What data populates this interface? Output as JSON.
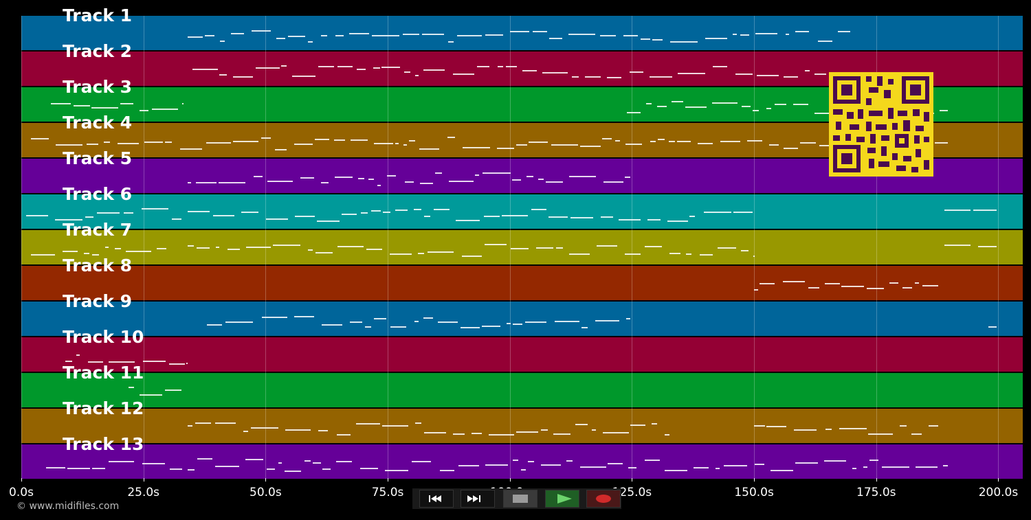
{
  "tracks": [
    {
      "label": "Track 1",
      "color": "#00659a"
    },
    {
      "label": "Track 2",
      "color": "#940034"
    },
    {
      "label": "Track 3",
      "color": "#00982b"
    },
    {
      "label": "Track 4",
      "color": "#946300"
    },
    {
      "label": "Track 5",
      "color": "#650098"
    },
    {
      "label": "Track 6",
      "color": "#009a9a"
    },
    {
      "label": "Track 7",
      "color": "#989800"
    },
    {
      "label": "Track 8",
      "color": "#942800"
    },
    {
      "label": "Track 9",
      "color": "#00659a"
    },
    {
      "label": "Track 10",
      "color": "#940034"
    },
    {
      "label": "Track 11",
      "color": "#00982b"
    },
    {
      "label": "Track 12",
      "color": "#946300"
    },
    {
      "label": "Track 13",
      "color": "#650098"
    }
  ],
  "timeline": {
    "max_seconds": 205,
    "ticks": [
      "0.0s",
      "25.0s",
      "50.0s",
      "75.0s",
      "100.0s",
      "125.0s",
      "150.0s",
      "175.0s",
      "200.0s"
    ],
    "tick_values": [
      0,
      25,
      50,
      75,
      100,
      125,
      150,
      175,
      200
    ]
  },
  "copyright": "© www.midifiles.com",
  "transport": {
    "rewind": "rewind-icon",
    "fast_forward": "fast-forward-icon",
    "stop": "stop-icon",
    "play": "play-icon",
    "record": "record-icon"
  },
  "qr_code": "qr-code-icon"
}
